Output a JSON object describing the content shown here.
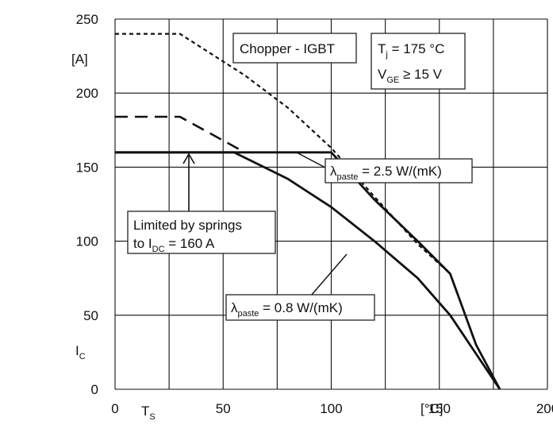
{
  "chart_data": {
    "type": "line",
    "x_ticks": [
      "0",
      "50",
      "100",
      "150",
      "200"
    ],
    "y_ticks": [
      "0",
      "50",
      "100",
      "150",
      "200",
      "250"
    ],
    "xlim": [
      0,
      200
    ],
    "ylim": [
      0,
      250
    ],
    "grid": true,
    "x_unit": "[°C]",
    "x_symbol": {
      "base": "T",
      "sub": "S"
    },
    "y_unit": "[A]",
    "y_symbol": {
      "base": "I",
      "sub": "C"
    },
    "series": [
      {
        "style": "dotted",
        "points": [
          [
            0,
            240
          ],
          [
            30,
            240
          ],
          [
            60,
            212
          ],
          [
            80,
            190
          ],
          [
            100,
            163
          ],
          [
            120,
            130
          ],
          [
            140,
            98
          ],
          [
            155,
            78
          ]
        ]
      },
      {
        "style": "dashed",
        "points": [
          [
            0,
            184
          ],
          [
            30,
            184
          ],
          [
            60,
            160
          ]
        ]
      },
      {
        "style": "solid",
        "points": [
          [
            0,
            160
          ],
          [
            100,
            160
          ],
          [
            120,
            128
          ],
          [
            140,
            100
          ],
          [
            155,
            78
          ],
          [
            167,
            30
          ],
          [
            178,
            0
          ]
        ]
      },
      {
        "style": "solid",
        "points": [
          [
            0,
            160
          ],
          [
            55,
            160
          ],
          [
            80,
            142
          ],
          [
            100,
            123
          ],
          [
            120,
            100
          ],
          [
            140,
            75
          ],
          [
            155,
            50
          ],
          [
            178,
            0
          ]
        ]
      }
    ],
    "annotations": {
      "chip": "Chopper - IGBT",
      "cond1": {
        "base": "T",
        "sub": "j",
        "rest": " = 175 °C"
      },
      "cond2": {
        "base": "V",
        "sub": "GE",
        "rest": " ≥ 15 V"
      },
      "paste_high": {
        "base": "λ",
        "sub": "paste",
        "rest": " = 2.5 W/(mK)"
      },
      "paste_low": {
        "base": "λ",
        "sub": "paste",
        "rest": " = 0.8 W/(mK)"
      },
      "springs_line1": "Limited by springs",
      "springs_line2": {
        "base": "to I",
        "sub": "DC",
        "rest": " = 160 A"
      }
    }
  }
}
